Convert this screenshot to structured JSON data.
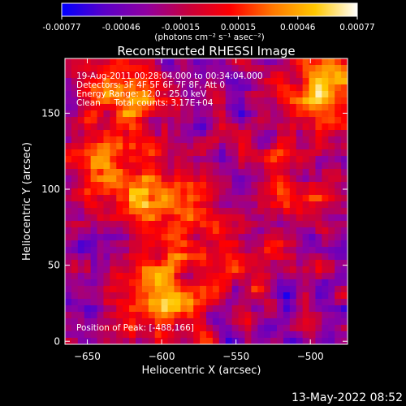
{
  "chart_data": {
    "type": "heatmap",
    "title": "Reconstructed RHESSI Image",
    "xlabel": "Heliocentric X (arcsec)",
    "ylabel": "Heliocentric Y (arcsec)",
    "xlim": [
      -665,
      -475
    ],
    "ylim": [
      -2,
      186
    ],
    "x_ticks": [
      -650,
      -600,
      -550,
      -500
    ],
    "y_ticks": [
      0,
      50,
      100,
      150
    ],
    "colorbar": {
      "ticks": [
        -0.00077,
        -0.00046,
        -0.00015,
        0.00015,
        0.00046,
        0.00077
      ],
      "tick_labels": [
        "-0.00077",
        "-0.00046",
        "-0.00015",
        "0.00015",
        "0.00046",
        "0.00077"
      ],
      "unit_label": "(photons cm⁻² s⁻¹ asec⁻²)",
      "colormap": [
        "#0000ff",
        "#5a00c8",
        "#9000a0",
        "#c8003c",
        "#ff0000",
        "#ff7800",
        "#ffc800",
        "#ffffff"
      ]
    },
    "annotations": [
      "19-Aug-2011 00:28:04.000 to 00:34:04.000",
      "Detectors: 3F 4F 5F 6F 7F 8F, Att 0",
      "Energy Range: 12.0 - 25.0 keV",
      "Clean     Total counts: 3.17E+04"
    ],
    "position_label": "Position of Peak: [-488,166]",
    "hot_regions": [
      {
        "x": -600,
        "y": 30,
        "level": 0.95
      },
      {
        "x": -635,
        "y": 110,
        "level": 0.85
      },
      {
        "x": -625,
        "y": 160,
        "level": 0.9
      },
      {
        "x": -488,
        "y": 166,
        "level": 1.0
      },
      {
        "x": -510,
        "y": 100,
        "level": 0.7
      },
      {
        "x": -560,
        "y": 50,
        "level": 0.65
      },
      {
        "x": -600,
        "y": 90,
        "level": 0.8
      }
    ]
  },
  "timestamp": "13-May-2022 08:52"
}
